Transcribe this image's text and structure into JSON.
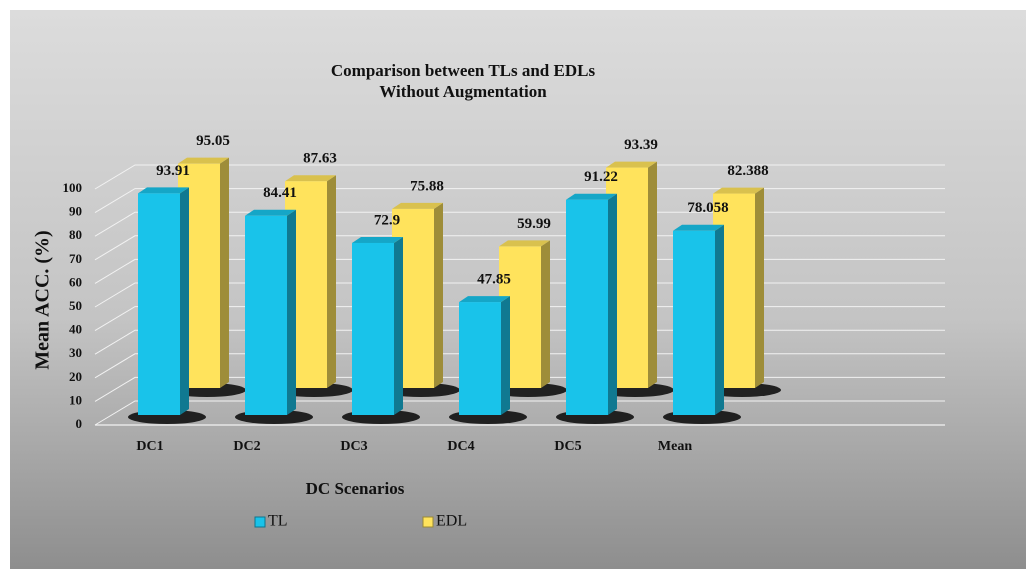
{
  "chart_data": {
    "type": "bar3d",
    "title": "Comparison between TLs and EDLs",
    "subtitle": "Without Augmentation",
    "y_label": "Mean ACC. (%)",
    "x_label": "DC Scenarios",
    "categories": [
      "DC1",
      "DC2",
      "DC3",
      "DC4",
      "DC5",
      "Mean"
    ],
    "series": [
      {
        "name": "TL",
        "color": "#19c3ea",
        "values": [
          93.91,
          84.41,
          72.9,
          47.85,
          91.22,
          78.058
        ]
      },
      {
        "name": "EDL",
        "color": "#ffe35c",
        "values": [
          95.05,
          87.63,
          75.88,
          59.99,
          93.39,
          82.388
        ]
      }
    ],
    "ylim": [
      0,
      100
    ],
    "yticks": [
      0,
      10,
      20,
      30,
      40,
      50,
      60,
      70,
      80,
      90,
      100
    ],
    "grid": true,
    "legend": "bottom"
  }
}
